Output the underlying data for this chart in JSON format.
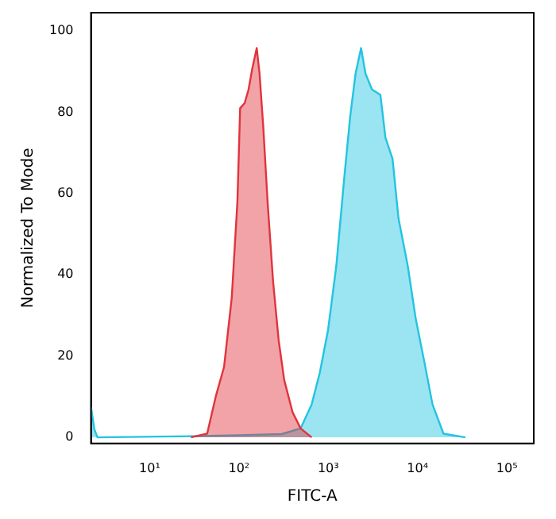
{
  "chart_data": {
    "type": "area",
    "xlabel": "FITC-A",
    "ylabel": "Normalized To Mode",
    "log": "x",
    "xlim": [
      2.2,
      200000
    ],
    "xticks": [
      {
        "value": 10,
        "label": "10¹"
      },
      {
        "value": 100,
        "label": "10²"
      },
      {
        "value": 1000,
        "label": "10³"
      },
      {
        "value": 10000,
        "label": "10⁴"
      },
      {
        "value": 100000,
        "label": "10⁵"
      }
    ],
    "ylim": [
      -1.5,
      104.5
    ],
    "yticks": [
      0,
      20,
      40,
      60,
      80,
      100
    ],
    "grid": false,
    "legend": false,
    "marker": "none",
    "series": [
      {
        "color": "#e0343c",
        "x": [
          29,
          44,
          55,
          68,
          83,
          96,
          103,
          116,
          128,
          141,
          158,
          170,
          187,
          209,
          241,
          278,
          321,
          398,
          490,
          651
        ],
        "values": [
          0,
          0.9,
          10.1,
          17.3,
          34.4,
          58,
          81,
          82.3,
          85.6,
          90.8,
          95.8,
          89.5,
          76.4,
          58,
          38.3,
          23.9,
          14.1,
          6.2,
          2.2,
          0
        ]
      },
      {
        "color": "#22c4e0",
        "x": [
          2.2,
          2.4,
          2.6,
          30,
          100,
          300,
          490,
          651,
          805,
          995,
          1230,
          1520,
          1760,
          2020,
          2330,
          2610,
          3090,
          3830,
          4370,
          5250,
          6100,
          7760,
          9550,
          11900,
          14700,
          19500,
          34300
        ],
        "values": [
          7.5,
          2,
          0,
          0.3,
          0.5,
          0.8,
          2.2,
          8.1,
          16,
          26.5,
          42.2,
          64.6,
          79,
          89.5,
          95.8,
          89.5,
          85.6,
          84.3,
          73.7,
          68.5,
          54,
          42.2,
          29.1,
          18.6,
          8.1,
          0.9,
          0
        ]
      }
    ]
  }
}
